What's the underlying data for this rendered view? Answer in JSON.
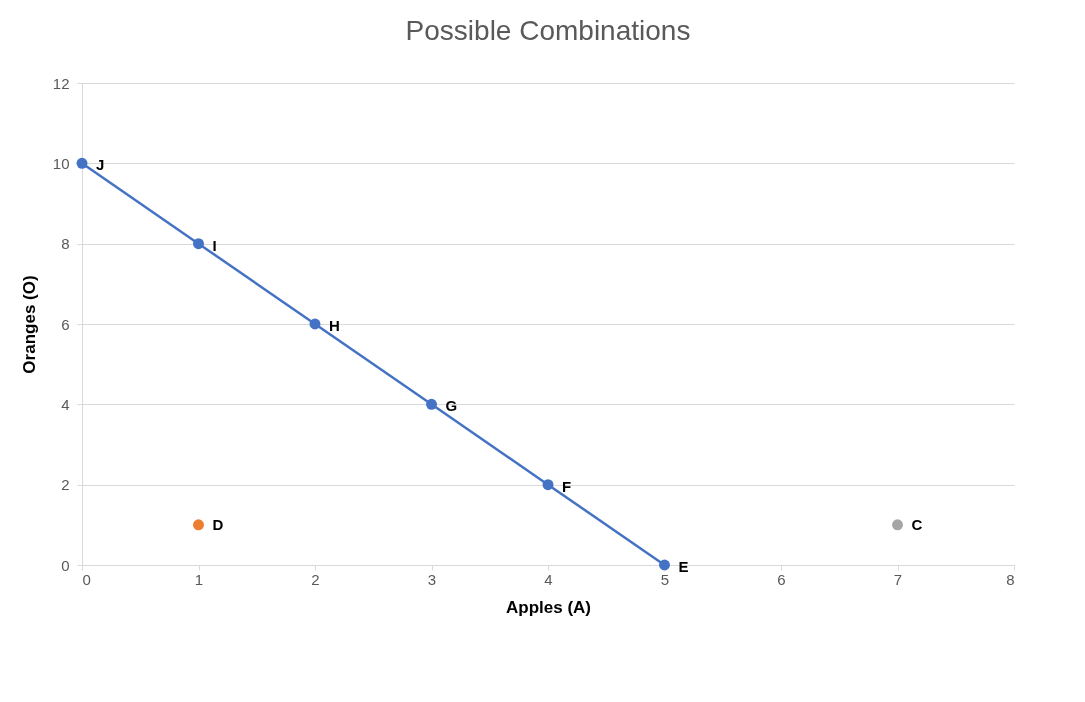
{
  "chart_data": {
    "type": "line",
    "title": "Possible Combinations",
    "xlabel": "Apples (A)",
    "ylabel": "Oranges (O)",
    "xlim": [
      0,
      8
    ],
    "xticks": [
      0,
      1,
      2,
      3,
      4,
      5,
      6,
      7,
      8
    ],
    "ylim": [
      0,
      12
    ],
    "yticks": [
      0,
      2,
      4,
      6,
      8,
      10,
      12
    ],
    "grid": "y",
    "series": [
      {
        "marker": "circle",
        "color": "#4472c4",
        "x": [
          0,
          1,
          2,
          3,
          4,
          5
        ],
        "values": [
          10,
          8,
          6,
          4,
          2,
          0
        ]
      },
      {
        "type": "scatter",
        "name": "D",
        "color": "#ed7d31",
        "x": [
          1
        ],
        "values": [
          1
        ]
      },
      {
        "type": "scatter",
        "name": "C",
        "color": "#a5a5a5",
        "x": [
          7
        ],
        "values": [
          1
        ]
      }
    ],
    "annotations": [
      {
        "text": "J",
        "x": 0,
        "y": 10
      },
      {
        "text": "I",
        "x": 1,
        "y": 8
      },
      {
        "text": "H",
        "x": 2,
        "y": 6
      },
      {
        "text": "G",
        "x": 3,
        "y": 4
      },
      {
        "text": "F",
        "x": 4,
        "y": 2
      },
      {
        "text": "E",
        "x": 5,
        "y": 0
      }
    ]
  }
}
